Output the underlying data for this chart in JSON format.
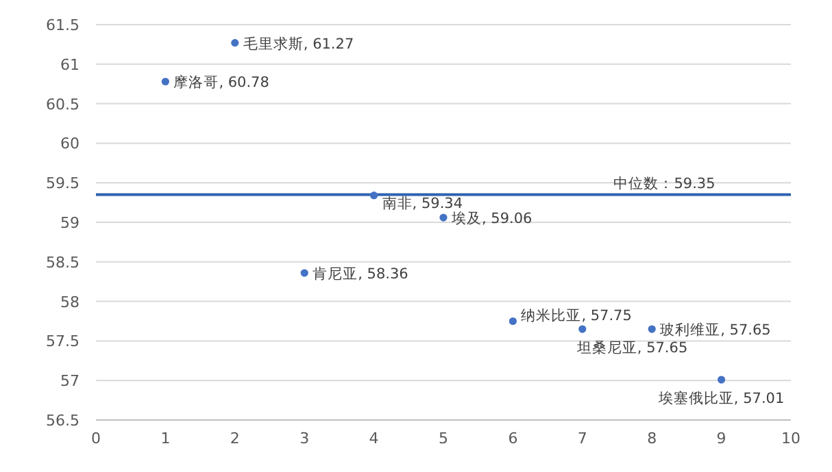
{
  "chart_data": {
    "type": "scatter",
    "x": [
      1,
      2,
      3,
      4,
      5,
      6,
      7,
      8,
      9
    ],
    "values": [
      60.78,
      61.27,
      58.36,
      59.34,
      59.06,
      57.75,
      57.65,
      57.65,
      57.01
    ],
    "value_labels": [
      "摩洛哥, 60.78",
      "毛里求斯, 61.27",
      "肯尼亚, 58.36",
      "南非, 59.34",
      "埃及, 59.06",
      "纳米比亚, 57.75",
      "坦桑尼亚, 57.65",
      "玻利维亚, 57.65",
      "埃塞俄比亚, 57.01"
    ],
    "color": "#4472c4",
    "marker": "circle",
    "xlim": [
      0,
      10
    ],
    "xticks": [
      0,
      1,
      2,
      3,
      4,
      5,
      6,
      7,
      8,
      9,
      10
    ],
    "ylim": [
      56.5,
      61.5
    ],
    "yticks": [
      56.5,
      57,
      57.5,
      58,
      58.5,
      59,
      59.5,
      60,
      60.5,
      61,
      61.5
    ],
    "grid": "y",
    "ref_lines": [
      {
        "axis": "y",
        "value": 59.35,
        "label": "中位数：59.35",
        "color": "#2e62b0",
        "line_style": "solid"
      }
    ]
  }
}
